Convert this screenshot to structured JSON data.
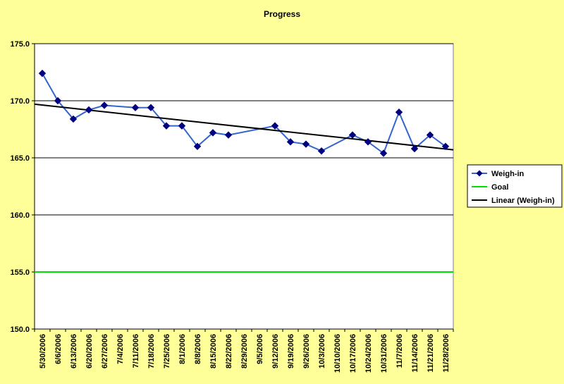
{
  "chart_data": {
    "type": "line",
    "title": "Progress",
    "xlabel": "",
    "ylabel": "",
    "ylim": [
      150.0,
      175.0
    ],
    "y_ticks": [
      "175.0",
      "170.0",
      "165.0",
      "160.0",
      "155.0",
      "150.0"
    ],
    "y_tick_values": [
      175,
      170,
      165,
      160,
      155,
      150
    ],
    "gridlines": [
      175,
      170,
      165,
      160
    ],
    "categories": [
      "5/30/2006",
      "6/6/2006",
      "6/13/2006",
      "6/20/2006",
      "6/27/2006",
      "7/4/2006",
      "7/11/2006",
      "7/18/2006",
      "7/25/2006",
      "8/1/2006",
      "8/8/2006",
      "8/15/2006",
      "8/22/2006",
      "8/29/2006",
      "9/5/2006",
      "9/12/2006",
      "9/19/2006",
      "9/26/2006",
      "10/3/2006",
      "10/10/2006",
      "10/17/2006",
      "10/24/2006",
      "10/31/2006",
      "11/7/2006",
      "11/14/2006",
      "11/21/2006",
      "11/28/2006"
    ],
    "series": [
      {
        "name": "Weigh-in",
        "color": "#000080",
        "line_color": "#3366CC",
        "points": [
          {
            "i": 0,
            "y": 172.4
          },
          {
            "i": 1,
            "y": 170.0
          },
          {
            "i": 2,
            "y": 168.4
          },
          {
            "i": 3,
            "y": 169.2
          },
          {
            "i": 4,
            "y": 169.6
          },
          {
            "i": 6,
            "y": 169.4
          },
          {
            "i": 7,
            "y": 169.4
          },
          {
            "i": 8,
            "y": 167.8
          },
          {
            "i": 9,
            "y": 167.8
          },
          {
            "i": 10,
            "y": 166.0
          },
          {
            "i": 11,
            "y": 167.2
          },
          {
            "i": 12,
            "y": 167.0
          },
          {
            "i": 15,
            "y": 167.8
          },
          {
            "i": 16,
            "y": 166.4
          },
          {
            "i": 17,
            "y": 166.2
          },
          {
            "i": 18,
            "y": 165.6
          },
          {
            "i": 20,
            "y": 167.0
          },
          {
            "i": 21,
            "y": 166.4
          },
          {
            "i": 22,
            "y": 165.4
          },
          {
            "i": 23,
            "y": 169.0
          },
          {
            "i": 24,
            "y": 165.8
          },
          {
            "i": 25,
            "y": 167.0
          },
          {
            "i": 26,
            "y": 166.0
          }
        ]
      },
      {
        "name": "Goal",
        "color": "#00DD00",
        "value": 155.0
      },
      {
        "name": "Linear (Weigh-in)",
        "color": "#000000",
        "start": 169.7,
        "end": 165.7
      }
    ],
    "legend_position": "right"
  },
  "colors": {
    "background": "#FFFF99",
    "plot_area": "#FFFFFF",
    "gridline": "#000000"
  }
}
